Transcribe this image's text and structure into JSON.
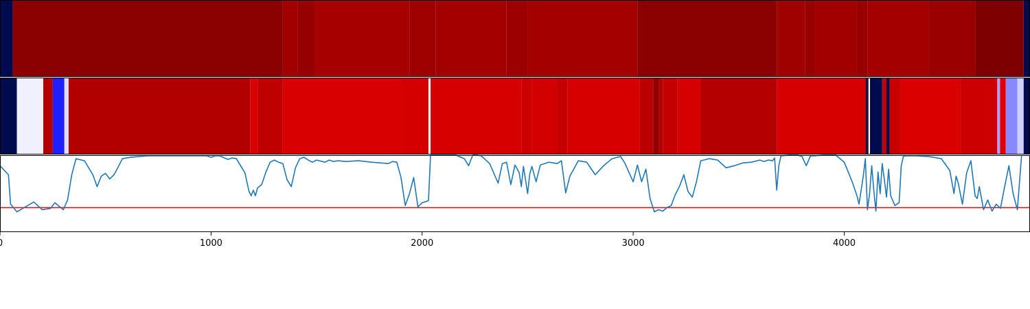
{
  "chart_data": [
    {
      "type": "heatmap",
      "x_range": [
        0,
        4880
      ],
      "colormap": "seismic",
      "segments": [
        {
          "start": 0,
          "end": 60,
          "color": "#000a4e"
        },
        {
          "start": 60,
          "end": 1340,
          "color": "#8b0000"
        },
        {
          "start": 1340,
          "end": 1410,
          "color": "#a20000"
        },
        {
          "start": 1410,
          "end": 1490,
          "color": "#960000"
        },
        {
          "start": 1490,
          "end": 1940,
          "color": "#a60000"
        },
        {
          "start": 1940,
          "end": 2065,
          "color": "#9e0000"
        },
        {
          "start": 2065,
          "end": 2400,
          "color": "#a50000"
        },
        {
          "start": 2400,
          "end": 2500,
          "color": "#9c0000"
        },
        {
          "start": 2500,
          "end": 3020,
          "color": "#a40000"
        },
        {
          "start": 3020,
          "end": 3680,
          "color": "#8b0000"
        },
        {
          "start": 3680,
          "end": 3815,
          "color": "#9f0000"
        },
        {
          "start": 3815,
          "end": 3860,
          "color": "#980000"
        },
        {
          "start": 3860,
          "end": 4060,
          "color": "#a20000"
        },
        {
          "start": 4060,
          "end": 4110,
          "color": "#980000"
        },
        {
          "start": 4110,
          "end": 4400,
          "color": "#a40000"
        },
        {
          "start": 4400,
          "end": 4620,
          "color": "#9a0000"
        },
        {
          "start": 4620,
          "end": 4850,
          "color": "#7e0000"
        },
        {
          "start": 4850,
          "end": 4880,
          "color": "#000a4e"
        }
      ]
    },
    {
      "type": "heatmap",
      "x_range": [
        0,
        4880
      ],
      "colormap": "seismic",
      "segments": [
        {
          "start": 0,
          "end": 80,
          "color": "#000a4e"
        },
        {
          "start": 80,
          "end": 205,
          "color": "#f0f0ff"
        },
        {
          "start": 205,
          "end": 250,
          "color": "#b40000"
        },
        {
          "start": 250,
          "end": 305,
          "color": "#2020ff"
        },
        {
          "start": 305,
          "end": 325,
          "color": "#e0e0ff"
        },
        {
          "start": 325,
          "end": 1185,
          "color": "#b20000"
        },
        {
          "start": 1185,
          "end": 1222,
          "color": "#d80000"
        },
        {
          "start": 1222,
          "end": 1340,
          "color": "#bf0000"
        },
        {
          "start": 1340,
          "end": 1900,
          "color": "#d80000"
        },
        {
          "start": 1900,
          "end": 2030,
          "color": "#d40000"
        },
        {
          "start": 2030,
          "end": 2040,
          "color": "#ffffff"
        },
        {
          "start": 2040,
          "end": 2470,
          "color": "#d60000"
        },
        {
          "start": 2470,
          "end": 2520,
          "color": "#cd0000"
        },
        {
          "start": 2520,
          "end": 2640,
          "color": "#d20000"
        },
        {
          "start": 2640,
          "end": 2690,
          "color": "#c40000"
        },
        {
          "start": 2690,
          "end": 3030,
          "color": "#d60000"
        },
        {
          "start": 3030,
          "end": 3095,
          "color": "#bb0000"
        },
        {
          "start": 3095,
          "end": 3120,
          "color": "#900000"
        },
        {
          "start": 3120,
          "end": 3140,
          "color": "#b00000"
        },
        {
          "start": 3140,
          "end": 3210,
          "color": "#c40000"
        },
        {
          "start": 3210,
          "end": 3320,
          "color": "#d70000"
        },
        {
          "start": 3320,
          "end": 3680,
          "color": "#b40000"
        },
        {
          "start": 3680,
          "end": 4100,
          "color": "#d60000"
        },
        {
          "start": 4100,
          "end": 4115,
          "color": "#2a0d30"
        },
        {
          "start": 4115,
          "end": 4122,
          "color": "#ffffff"
        },
        {
          "start": 4122,
          "end": 4180,
          "color": "#000a4e"
        },
        {
          "start": 4180,
          "end": 4200,
          "color": "#c00000"
        },
        {
          "start": 4200,
          "end": 4215,
          "color": "#000a4e"
        },
        {
          "start": 4215,
          "end": 4265,
          "color": "#c80000"
        },
        {
          "start": 4265,
          "end": 4550,
          "color": "#da0000"
        },
        {
          "start": 4550,
          "end": 4725,
          "color": "#cc0000"
        },
        {
          "start": 4725,
          "end": 4738,
          "color": "#b0a0ff"
        },
        {
          "start": 4738,
          "end": 4765,
          "color": "#e00000"
        },
        {
          "start": 4765,
          "end": 4820,
          "color": "#8888ff"
        },
        {
          "start": 4820,
          "end": 4850,
          "color": "#d0d0ff"
        },
        {
          "start": 4850,
          "end": 4880,
          "color": "#000a4e"
        }
      ]
    },
    {
      "type": "line",
      "xlim": [
        0,
        4880
      ],
      "ylim": [
        -0.1,
        1.0
      ],
      "x_ticks": [
        0,
        1000,
        2000,
        3000,
        4000
      ],
      "tick_labels": [
        "0",
        "1000",
        "2000",
        "3000",
        "4000"
      ],
      "threshold": 0.25,
      "colors": {
        "line": "#1f77b4",
        "threshold": "#ff0000"
      },
      "series_x": [
        0,
        40,
        50,
        80,
        120,
        160,
        200,
        240,
        260,
        300,
        320,
        340,
        360,
        400,
        440,
        460,
        480,
        500,
        520,
        540,
        560,
        580,
        600,
        620,
        660,
        700,
        760,
        800,
        840,
        880,
        940,
        980,
        1000,
        1020,
        1040,
        1080,
        1100,
        1120,
        1140,
        1160,
        1180,
        1190,
        1200,
        1210,
        1220,
        1240,
        1260,
        1280,
        1300,
        1320,
        1340,
        1360,
        1380,
        1400,
        1420,
        1440,
        1460,
        1480,
        1500,
        1540,
        1560,
        1580,
        1600,
        1640,
        1700,
        1760,
        1800,
        1840,
        1860,
        1880,
        1900,
        1920,
        1940,
        1960,
        1980,
        2000,
        2030,
        2040,
        2060,
        2100,
        2160,
        2200,
        2220,
        2240,
        2260,
        2280,
        2320,
        2360,
        2380,
        2400,
        2420,
        2440,
        2460,
        2470,
        2480,
        2500,
        2510,
        2520,
        2540,
        2560,
        2600,
        2640,
        2660,
        2680,
        2700,
        2740,
        2780,
        2820,
        2860,
        2900,
        2940,
        2960,
        3000,
        3020,
        3040,
        3060,
        3080,
        3100,
        3120,
        3140,
        3160,
        3180,
        3200,
        3220,
        3240,
        3260,
        3280,
        3300,
        3320,
        3360,
        3400,
        3440,
        3480,
        3520,
        3560,
        3600,
        3620,
        3640,
        3660,
        3670,
        3680,
        3690,
        3700,
        3740,
        3780,
        3800,
        3820,
        3840,
        3860,
        3900,
        3960,
        4000,
        4040,
        4060,
        4070,
        4090,
        4100,
        4110,
        4120,
        4130,
        4140,
        4150,
        4160,
        4170,
        4180,
        4190,
        4200,
        4210,
        4220,
        4240,
        4260,
        4270,
        4280,
        4290,
        4300,
        4340,
        4400,
        4460,
        4500,
        4520,
        4530,
        4540,
        4560,
        4580,
        4600,
        4620,
        4630,
        4640,
        4660,
        4680,
        4700,
        4720,
        4740,
        4760,
        4780,
        4800,
        4820,
        4840,
        4860,
        4880
      ],
      "series_y": [
        0.85,
        0.72,
        0.3,
        0.19,
        0.26,
        0.33,
        0.22,
        0.24,
        0.32,
        0.22,
        0.36,
        0.72,
        0.95,
        0.92,
        0.72,
        0.55,
        0.7,
        0.74,
        0.66,
        0.72,
        0.83,
        0.95,
        0.96,
        0.97,
        0.98,
        0.99,
        0.99,
        0.99,
        0.99,
        0.99,
        0.99,
        0.99,
        0.97,
        0.99,
        0.99,
        0.94,
        0.96,
        0.95,
        0.85,
        0.75,
        0.48,
        0.42,
        0.5,
        0.42,
        0.53,
        0.58,
        0.76,
        0.9,
        0.93,
        0.9,
        0.88,
        0.65,
        0.55,
        0.82,
        0.95,
        0.97,
        0.93,
        0.9,
        0.93,
        0.9,
        0.93,
        0.91,
        0.92,
        0.91,
        0.92,
        0.9,
        0.89,
        0.88,
        0.91,
        0.9,
        0.68,
        0.28,
        0.45,
        0.68,
        0.26,
        0.32,
        0.35,
        1.0,
        1.0,
        1.0,
        1.0,
        0.95,
        0.85,
        1.0,
        1.0,
        0.99,
        0.88,
        0.6,
        0.88,
        0.9,
        0.58,
        0.86,
        0.75,
        0.55,
        0.84,
        0.45,
        0.73,
        0.84,
        0.62,
        0.86,
        0.9,
        0.88,
        0.92,
        0.46,
        0.7,
        0.92,
        0.9,
        0.72,
        0.85,
        0.95,
        0.98,
        0.89,
        0.62,
        0.86,
        0.62,
        0.8,
        0.38,
        0.19,
        0.22,
        0.2,
        0.25,
        0.28,
        0.44,
        0.56,
        0.72,
        0.48,
        0.4,
        0.62,
        0.92,
        0.95,
        0.93,
        0.82,
        0.85,
        0.89,
        0.9,
        0.93,
        0.91,
        0.93,
        0.92,
        0.96,
        0.5,
        0.85,
        0.99,
        1.0,
        1.0,
        0.98,
        0.85,
        0.99,
        0.99,
        1.0,
        1.0,
        0.9,
        0.6,
        0.42,
        0.3,
        0.7,
        0.95,
        0.22,
        0.45,
        0.85,
        0.5,
        0.2,
        0.76,
        0.45,
        0.88,
        0.65,
        0.4,
        0.8,
        0.42,
        0.28,
        0.32,
        0.85,
        0.98,
        0.99,
        0.99,
        0.99,
        0.98,
        0.95,
        0.78,
        0.45,
        0.7,
        0.6,
        0.3,
        0.75,
        0.92,
        0.42,
        0.38,
        0.55,
        0.22,
        0.36,
        0.2,
        0.3,
        0.24,
        0.55,
        0.85,
        0.45,
        0.22,
        0.99
      ]
    }
  ]
}
